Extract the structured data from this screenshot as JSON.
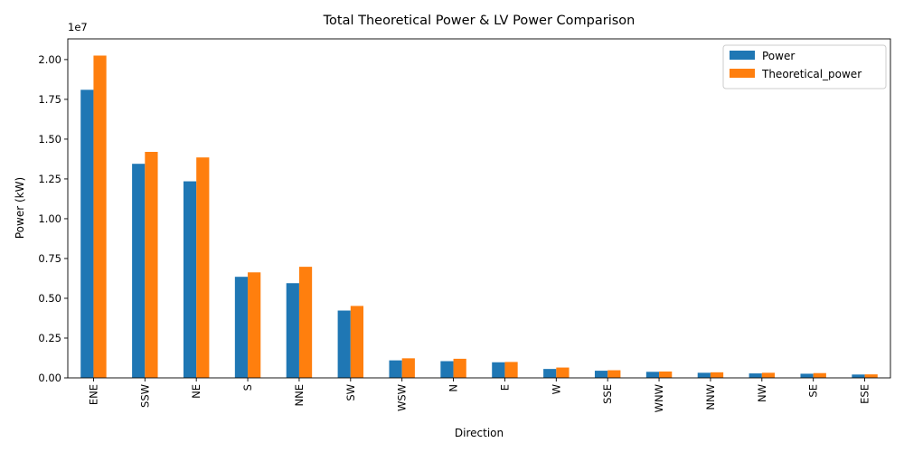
{
  "chart_data": {
    "type": "bar",
    "title": "Total Theoretical Power & LV Power Comparison",
    "xlabel": "Direction",
    "ylabel": "Power (kW)",
    "y_offset_text": "1e7",
    "ylim": [
      0,
      21300000
    ],
    "yticks": [
      0,
      2500000,
      5000000,
      7500000,
      10000000,
      12500000,
      15000000,
      17500000,
      20000000
    ],
    "ytick_labels": [
      "0.00",
      "0.25",
      "0.50",
      "0.75",
      "1.00",
      "1.25",
      "1.50",
      "1.75",
      "2.00"
    ],
    "grid": false,
    "legend_position": "top-right",
    "categories": [
      "ENE",
      "SSW",
      "NE",
      "S",
      "NNE",
      "SW",
      "WSW",
      "N",
      "E",
      "W",
      "SSE",
      "WNW",
      "NNW",
      "NW",
      "SE",
      "ESE"
    ],
    "series": [
      {
        "name": "Power",
        "color": "#1f77b4",
        "values": [
          18100000,
          13450000,
          12350000,
          6350000,
          5950000,
          4230000,
          1100000,
          1050000,
          980000,
          560000,
          450000,
          380000,
          320000,
          280000,
          260000,
          210000
        ]
      },
      {
        "name": "Theoretical_power",
        "color": "#ff7f0e",
        "values": [
          20250000,
          14200000,
          13850000,
          6630000,
          6980000,
          4520000,
          1230000,
          1200000,
          1000000,
          650000,
          480000,
          400000,
          350000,
          320000,
          300000,
          220000
        ]
      }
    ]
  }
}
